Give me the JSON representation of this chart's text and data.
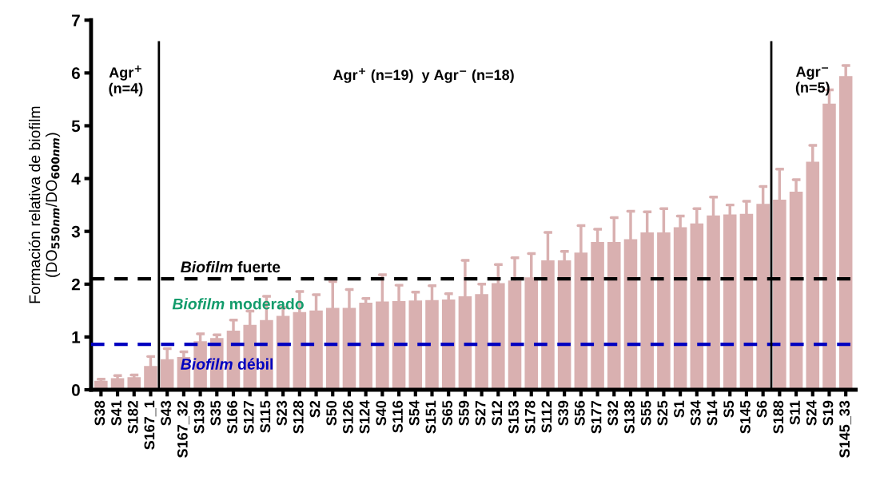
{
  "chart_data": {
    "type": "bar",
    "ylabel": "Formación relativa de biofilm\n(DO$_{550nm}$/DO$_{600nm}$)",
    "categories": [
      "S38",
      "S41",
      "S182",
      "S167_1",
      "S43",
      "S167_32",
      "S139",
      "S35",
      "S166",
      "S127",
      "S115",
      "S23",
      "S128",
      "S2",
      "S50",
      "S126",
      "S124",
      "S40",
      "S116",
      "S54",
      "S151",
      "S65",
      "S59",
      "S27",
      "S12",
      "S153",
      "S178",
      "S112",
      "S39",
      "S56",
      "S177",
      "S32",
      "S138",
      "S55",
      "S25",
      "S1",
      "S34",
      "S14",
      "S5",
      "S145",
      "S6",
      "S188",
      "S11",
      "S24",
      "S19",
      "S145_33"
    ],
    "values": [
      0.17,
      0.22,
      0.24,
      0.45,
      0.58,
      0.62,
      0.92,
      0.98,
      1.12,
      1.23,
      1.32,
      1.4,
      1.47,
      1.5,
      1.55,
      1.55,
      1.65,
      1.67,
      1.68,
      1.69,
      1.7,
      1.71,
      1.77,
      1.81,
      2.02,
      2.07,
      2.13,
      2.45,
      2.45,
      2.6,
      2.8,
      2.8,
      2.85,
      2.98,
      2.98,
      3.08,
      3.15,
      3.3,
      3.32,
      3.33,
      3.52,
      3.6,
      3.75,
      4.32,
      5.42,
      5.94
    ],
    "errors": [
      [
        0.17,
        0.2
      ],
      [
        0.22,
        0.27
      ],
      [
        0.24,
        0.28
      ],
      [
        0.45,
        0.63
      ],
      [
        0.58,
        0.78
      ],
      [
        0.62,
        0.72
      ],
      [
        0.92,
        1.06
      ],
      [
        0.98,
        1.04
      ],
      [
        1.12,
        1.32
      ],
      [
        1.23,
        1.49
      ],
      [
        1.32,
        1.77
      ],
      [
        1.4,
        1.56
      ],
      [
        1.47,
        1.86
      ],
      [
        1.5,
        1.8
      ],
      [
        1.55,
        2.05
      ],
      [
        1.55,
        1.9
      ],
      [
        1.65,
        1.73
      ],
      [
        1.67,
        2.18
      ],
      [
        1.68,
        1.98
      ],
      [
        1.69,
        1.85
      ],
      [
        1.7,
        1.97
      ],
      [
        1.71,
        1.82
      ],
      [
        1.77,
        2.45
      ],
      [
        1.81,
        2.0
      ],
      [
        2.02,
        2.37
      ],
      [
        2.07,
        2.5
      ],
      [
        2.13,
        2.58
      ],
      [
        2.45,
        2.98
      ],
      [
        2.45,
        2.62
      ],
      [
        2.6,
        3.11
      ],
      [
        2.8,
        3.04
      ],
      [
        2.8,
        3.26
      ],
      [
        2.85,
        3.38
      ],
      [
        2.98,
        3.37
      ],
      [
        2.98,
        3.43
      ],
      [
        3.08,
        3.29
      ],
      [
        3.15,
        3.43
      ],
      [
        3.3,
        3.65
      ],
      [
        3.32,
        3.5
      ],
      [
        3.33,
        3.57
      ],
      [
        3.52,
        3.85
      ],
      [
        3.6,
        4.18
      ],
      [
        3.75,
        3.98
      ],
      [
        4.32,
        4.63
      ],
      [
        5.42,
        5.68
      ],
      [
        5.94,
        6.14
      ]
    ],
    "color": "#d9b0b0",
    "ylim": [
      0,
      7
    ],
    "yticks": [
      0,
      1,
      2,
      3,
      4,
      5,
      6,
      7
    ],
    "ref_lines": [
      {
        "axis": "y",
        "value": 2.1,
        "label": "Biofilm fuerte",
        "color": "#000000",
        "line_style": "dashed"
      },
      {
        "axis": "y",
        "value": 0.86,
        "label": "Biofilm débil",
        "color": "#0000c0",
        "line_style": "dashed"
      }
    ],
    "annotations": [
      {
        "text": "Biofilm moderado",
        "x": "S126",
        "y": 1.6
      },
      "Agr$^{+}$\n(n=4)",
      "Agr$^{+}$ (n=19)  y Agr$^{−}$ (n=18)",
      "Agr$^{−}$\n(n=5)"
    ]
  }
}
